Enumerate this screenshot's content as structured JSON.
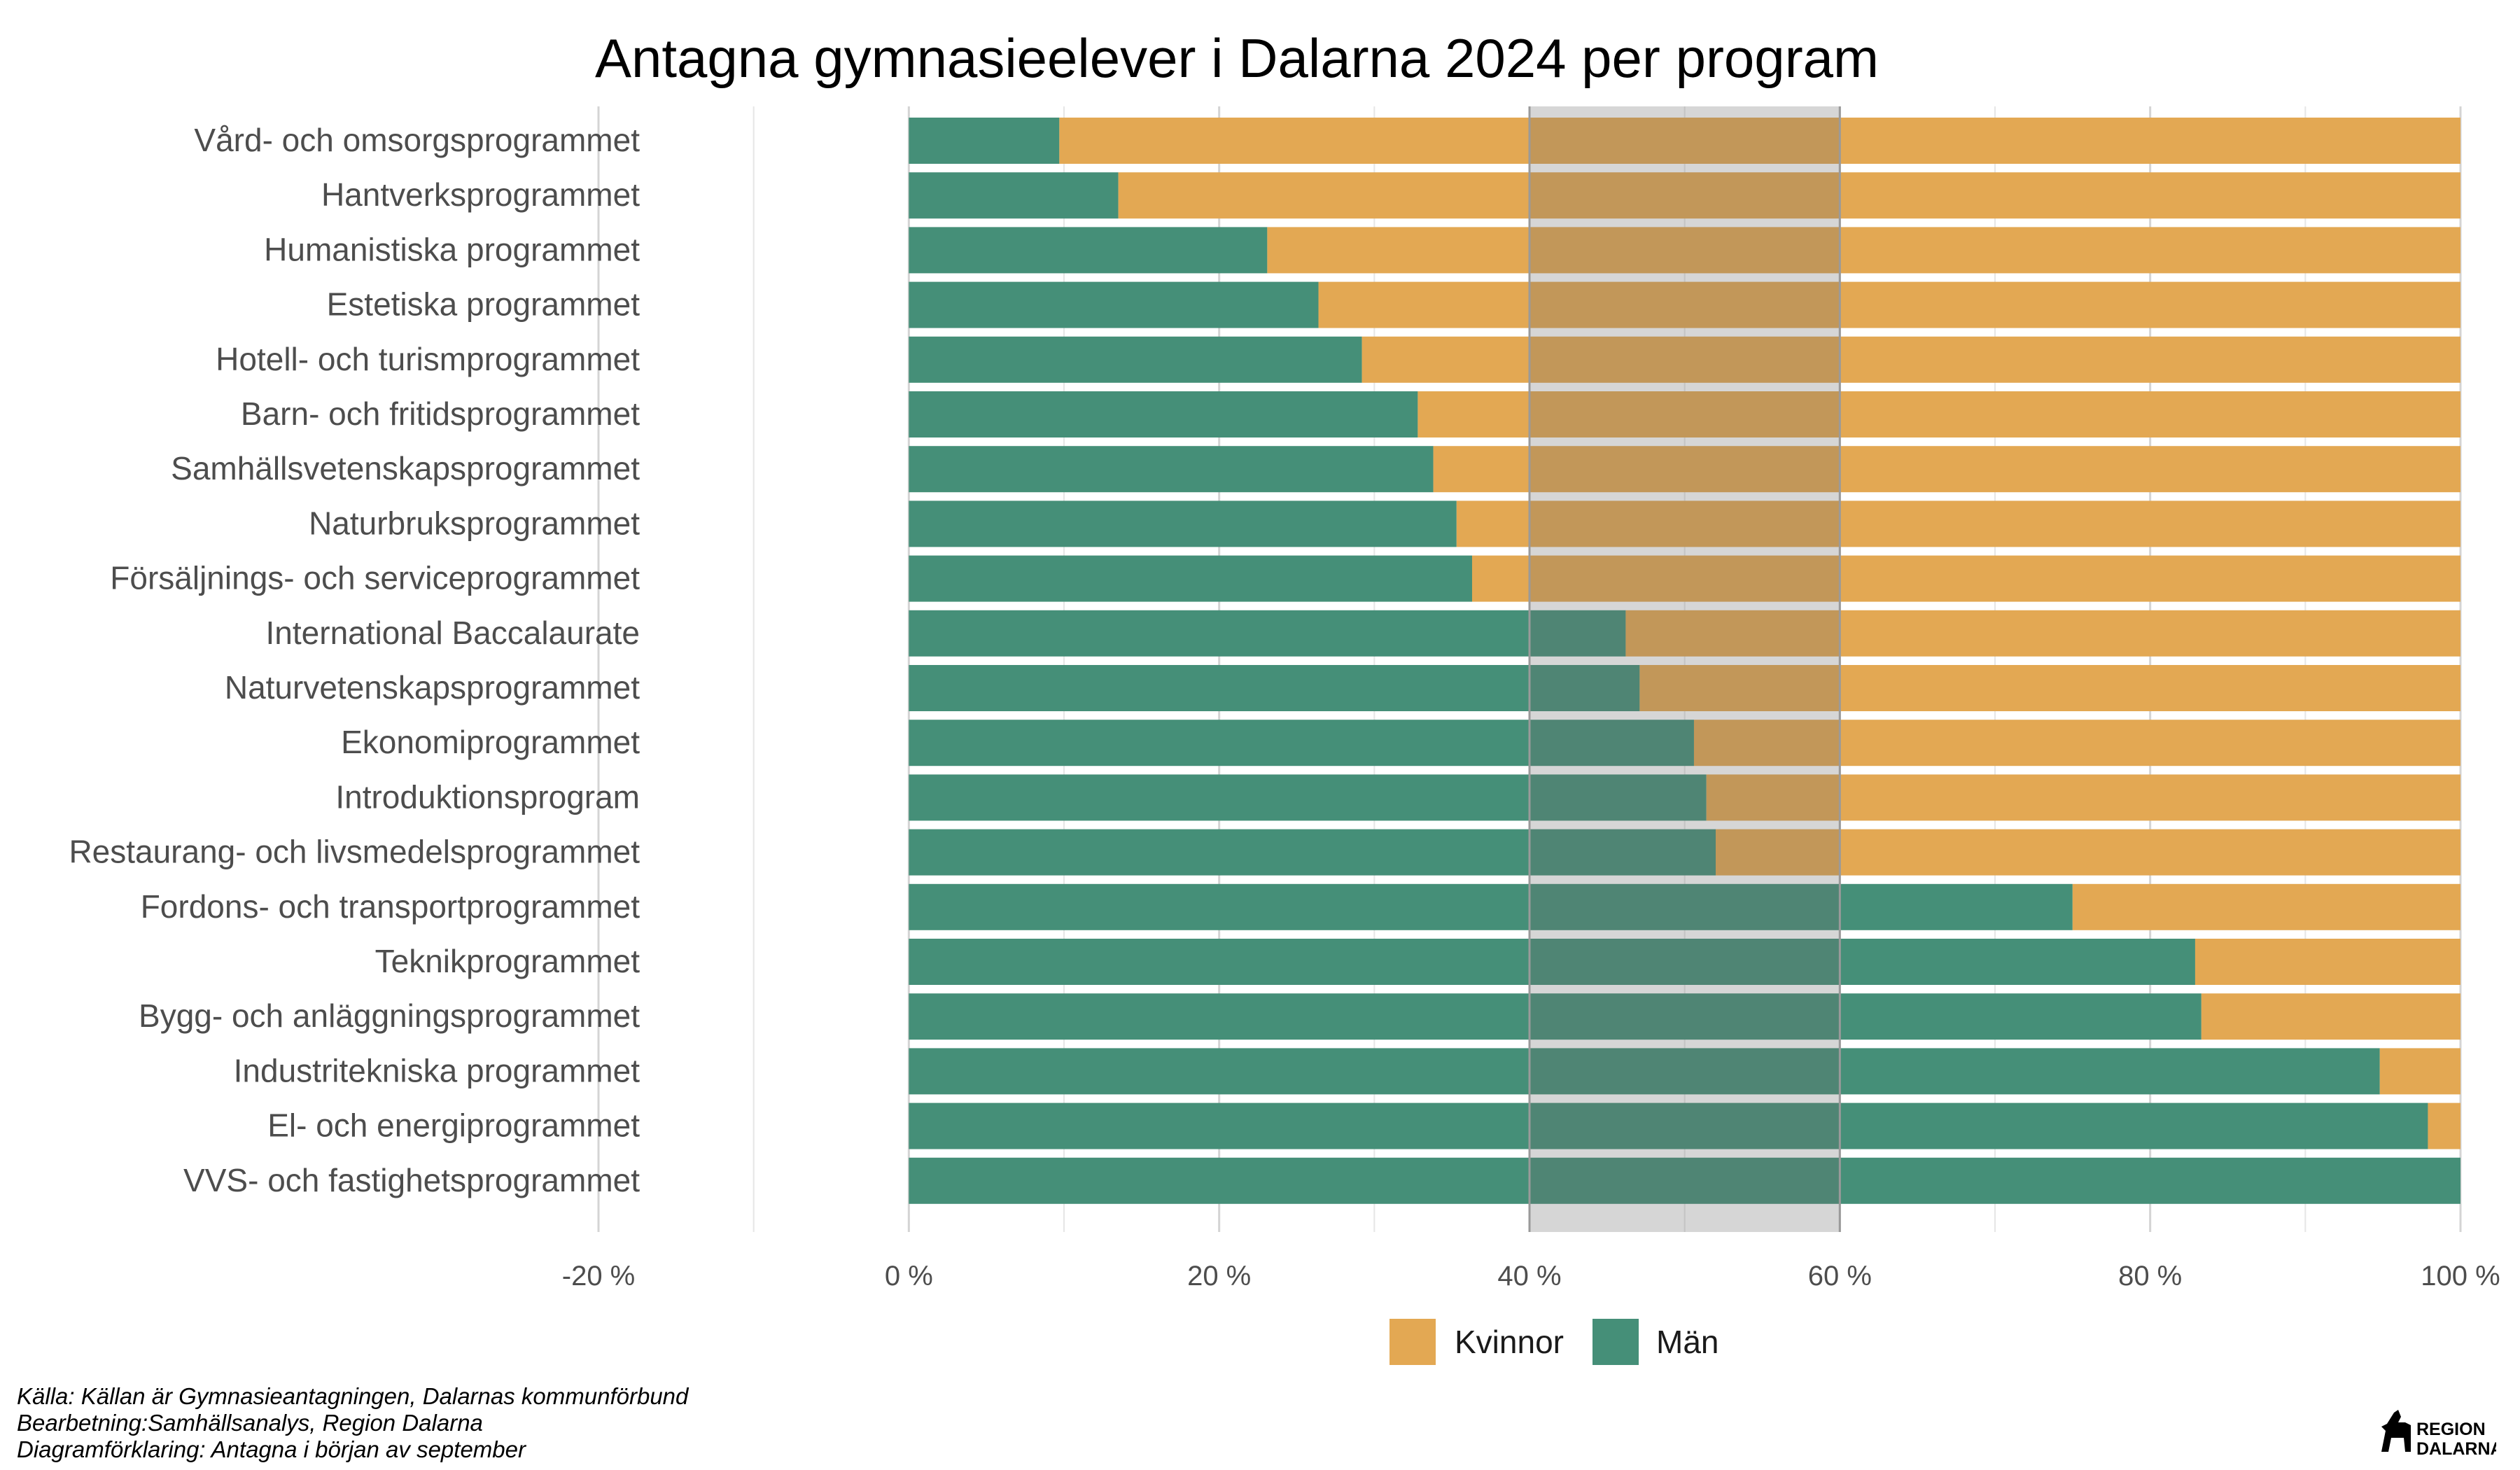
{
  "chart_data": {
    "type": "bar",
    "orientation": "horizontal",
    "stacked": true,
    "title": "Antagna gymnasieelever i Dalarna 2024 per program",
    "categories": [
      "Vård- och omsorgsprogrammet",
      "Hantverksprogrammet",
      "Humanistiska programmet",
      "Estetiska programmet",
      "Hotell- och turismprogrammet",
      "Barn- och fritidsprogrammet",
      "Samhällsvetenskapsprogrammet",
      "Naturbruksprogrammet",
      "Försäljnings- och serviceprogrammet",
      "International Baccalaurate",
      "Naturvetenskapsprogrammet",
      "Ekonomiprogrammet",
      "Introduktionsprogram",
      "Restaurang- och livsmedelsprogrammet",
      "Fordons- och transportprogrammet",
      "Teknikprogrammet",
      "Bygg- och anläggningsprogrammet",
      "Industritekniska programmet",
      "El- och energiprogrammet",
      "VVS- och fastighetsprogrammet"
    ],
    "series": [
      {
        "name": "Män",
        "color": "#458f78",
        "values": [
          9.7,
          13.5,
          23.1,
          26.4,
          29.2,
          32.8,
          33.8,
          35.3,
          36.3,
          46.2,
          47.1,
          50.6,
          51.4,
          52.0,
          75.0,
          82.9,
          83.3,
          94.8,
          97.9,
          100.0
        ]
      },
      {
        "name": "Kvinnor",
        "color": "#e3a853",
        "values": [
          90.3,
          86.5,
          76.9,
          73.6,
          70.8,
          67.2,
          66.2,
          64.7,
          63.7,
          53.8,
          52.9,
          49.4,
          48.6,
          48.0,
          25.0,
          17.1,
          16.7,
          5.2,
          2.1,
          0.0
        ]
      }
    ],
    "xlim": [
      -20,
      100
    ],
    "x_ticks": [
      -20,
      0,
      20,
      40,
      60,
      80,
      100
    ],
    "x_tick_labels": [
      "-20 %",
      "0 %",
      "20 %",
      "40 %",
      "60 %",
      "80 %",
      "100 %"
    ],
    "shaded_band": [
      40,
      60
    ],
    "grid": true,
    "legend_position": "bottom",
    "legend": [
      "Kvinnor",
      "Män"
    ]
  },
  "caption": {
    "line1": "Källa: Källan är Gymnasieantagningen, Dalarnas kommunförbund",
    "line2": "Bearbetning:Samhällsanalys, Region Dalarna",
    "line3": "Diagramförklaring: Antagna i början av september"
  },
  "logo": {
    "line1": "REGION",
    "line2": "DALARNA"
  }
}
